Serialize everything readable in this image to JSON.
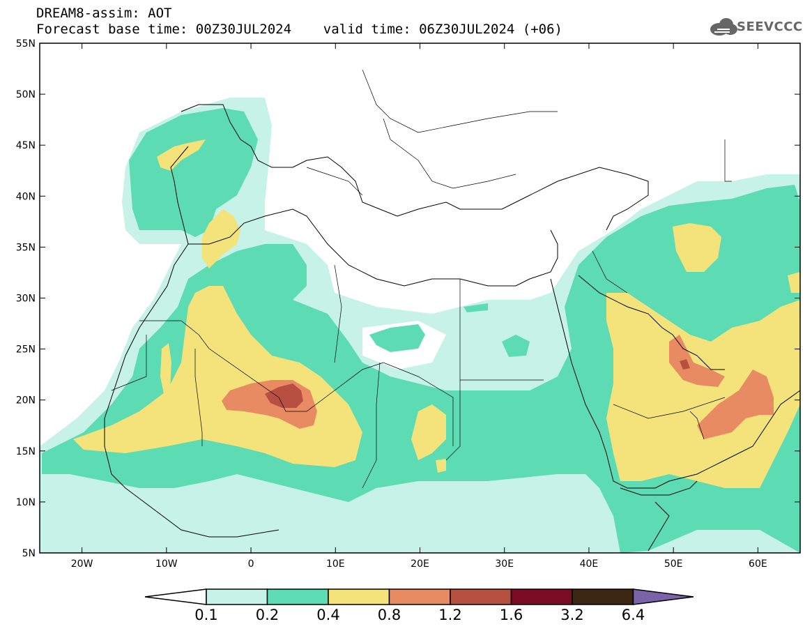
{
  "title": {
    "line1": "DREAM8-assim: AOT",
    "line2": "Forecast base time: 00Z30JUL2024    valid time: 06Z30JUL2024 (+06)"
  },
  "logo": {
    "text": "SEEVCCC",
    "icon": "cloud-icon",
    "color": "#666666"
  },
  "map": {
    "lat_labels": [
      "55N",
      "50N",
      "45N",
      "40N",
      "35N",
      "30N",
      "25N",
      "20N",
      "15N",
      "10N",
      "5N"
    ],
    "lat_values": [
      55,
      50,
      45,
      40,
      35,
      30,
      25,
      20,
      15,
      10,
      5
    ],
    "lon_labels": [
      "20W",
      "10W",
      "0",
      "10E",
      "20E",
      "30E",
      "40E",
      "50E",
      "60E"
    ],
    "lon_values": [
      -20,
      -10,
      0,
      10,
      20,
      30,
      40,
      50,
      60
    ],
    "lon_range": [
      -25,
      65
    ],
    "lat_range": [
      5,
      55
    ]
  },
  "colorbar": {
    "labels": [
      "0.1",
      "0.2",
      "0.4",
      "0.8",
      "1.2",
      "1.6",
      "3.2",
      "6.4"
    ],
    "colors": [
      "#c6f2e7",
      "#5ddcb4",
      "#f4e27a",
      "#e88a62",
      "#b75040",
      "#7c0b25",
      "#3b2712"
    ],
    "under_color": "#ffffff",
    "over_color": "#7a63a8"
  }
}
